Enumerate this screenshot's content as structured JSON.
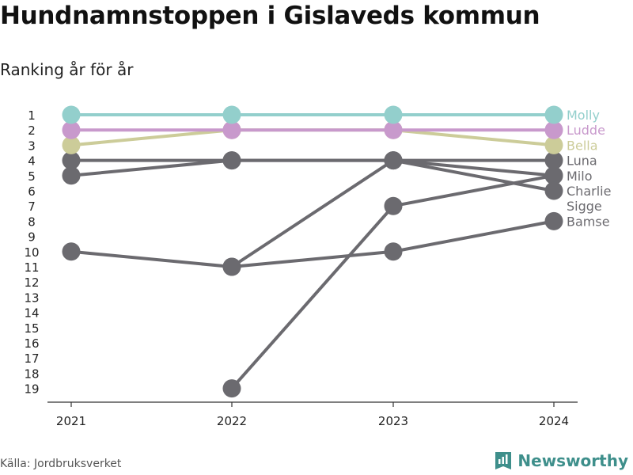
{
  "header": {
    "title": "Hundnamnstoppen i Gislaveds kommun",
    "subtitle": "Ranking år för år"
  },
  "footer": {
    "source": "Källa: Jordbruksverket",
    "brand": "Newsworthy",
    "brand_icon": "bar-chart-logo-icon"
  },
  "colors": {
    "axis": "#333333",
    "default_series": "#6b6a6f",
    "molly": "#93cfcc",
    "ludde": "#c899cc",
    "bella": "#cccc99",
    "brand": "#3e8f8b"
  },
  "chart_data": {
    "type": "line",
    "x": [
      "2021",
      "2022",
      "2023",
      "2024"
    ],
    "y_ticks": [
      1,
      2,
      3,
      4,
      5,
      6,
      7,
      8,
      9,
      10,
      11,
      12,
      13,
      14,
      15,
      16,
      17,
      18,
      19
    ],
    "ylim": [
      19,
      1
    ],
    "y_inverted": true,
    "series": [
      {
        "name": "Sigge",
        "values": [
          null,
          19,
          7,
          5
        ],
        "color": "#6b6a6f",
        "label_color": "#6b6a6f"
      },
      {
        "name": "Bamse",
        "values": [
          10,
          11,
          10,
          8
        ],
        "color": "#6b6a6f",
        "label_color": "#6b6a6f"
      },
      {
        "name": "Milo",
        "values": [
          5,
          4,
          4,
          5
        ],
        "color": "#6b6a6f",
        "label_color": "#6b6a6f"
      },
      {
        "name": "Charlie",
        "values": [
          null,
          11,
          4,
          6
        ],
        "color": "#6b6a6f",
        "label_color": "#6b6a6f"
      },
      {
        "name": "Luna",
        "values": [
          4,
          4,
          4,
          4
        ],
        "color": "#6b6a6f",
        "label_color": "#6b6a6f"
      },
      {
        "name": "Bella",
        "values": [
          3,
          2,
          2,
          3
        ],
        "color": "#cccc99",
        "label_color": "#cccc99"
      },
      {
        "name": "Ludde",
        "values": [
          2,
          2,
          2,
          2
        ],
        "color": "#c899cc",
        "label_color": "#c899cc"
      },
      {
        "name": "Molly",
        "values": [
          1,
          1,
          1,
          1
        ],
        "color": "#93cfcc",
        "label_color": "#93cfcc"
      }
    ],
    "end_labels": [
      "Molly",
      "Ludde",
      "Bella",
      "Luna",
      "Milo",
      "Charlie",
      "Sigge",
      "Bamse"
    ],
    "grid": false,
    "legend": "right-end-labels"
  }
}
